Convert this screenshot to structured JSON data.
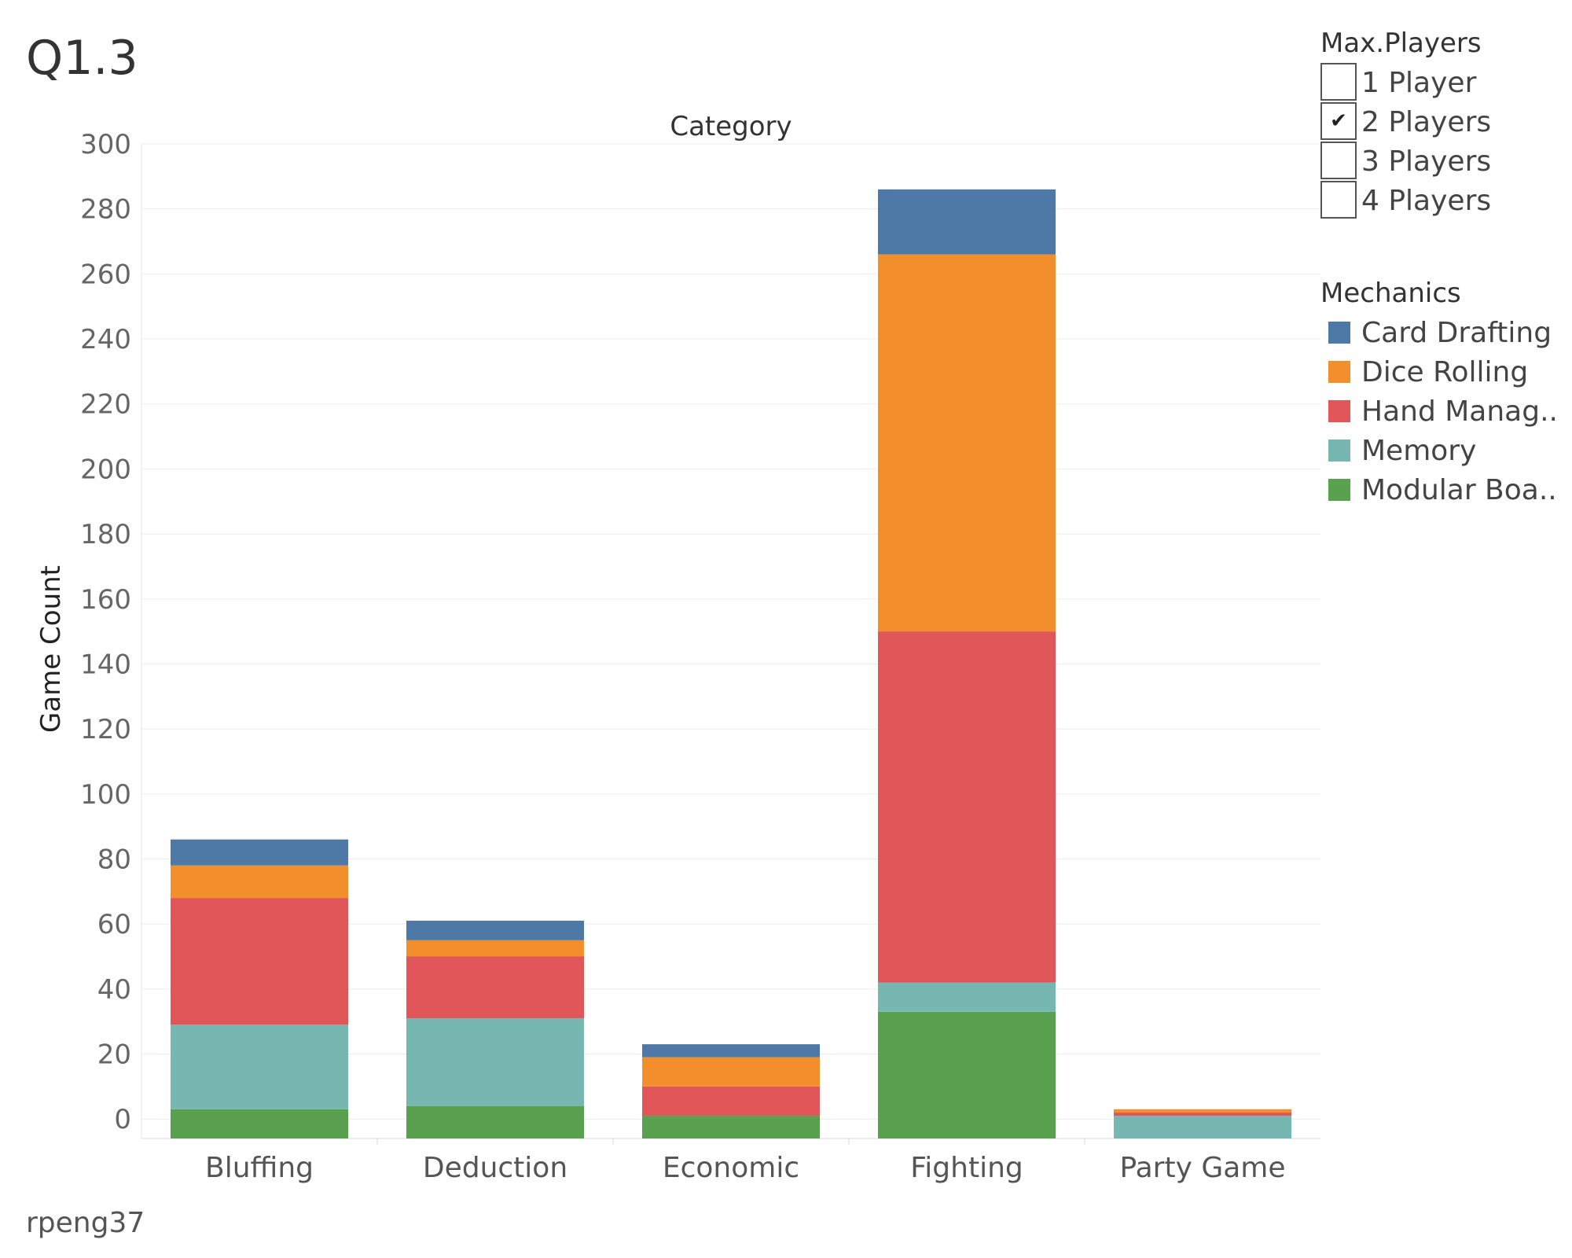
{
  "page": {
    "title": "Q1.3",
    "author": "rpeng37"
  },
  "filter": {
    "title": "Max.Players",
    "options": [
      {
        "label": "1 Player",
        "checked": false
      },
      {
        "label": "2 Players",
        "checked": true
      },
      {
        "label": "3 Players",
        "checked": false
      },
      {
        "label": "4 Players",
        "checked": false
      }
    ],
    "check_glyph": "✔"
  },
  "legend": {
    "title": "Mechanics",
    "items": [
      {
        "label": "Card Drafting",
        "color": "#4e79a7"
      },
      {
        "label": "Dice Rolling",
        "color": "#f28e2b"
      },
      {
        "label": "Hand Manag..",
        "color": "#e15759"
      },
      {
        "label": "Memory",
        "color": "#76b7b2"
      },
      {
        "label": "Modular Boa..",
        "color": "#59a14f"
      }
    ]
  },
  "chart_data": {
    "type": "bar",
    "stacked": true,
    "title": "Category",
    "xlabel": "",
    "ylabel": "Game Count",
    "ylim": [
      -6,
      300
    ],
    "yticks": [
      0,
      20,
      40,
      60,
      80,
      100,
      120,
      140,
      160,
      180,
      200,
      220,
      240,
      260,
      280,
      300
    ],
    "grid": true,
    "legend_position": "right",
    "categories": [
      "Bluffing",
      "Deduction",
      "Economic",
      "Fighting",
      "Party Game"
    ],
    "series": [
      {
        "name": "Modular Boa..",
        "color": "#59a14f",
        "values": [
          3,
          4,
          1,
          33,
          0
        ]
      },
      {
        "name": "Memory",
        "color": "#76b7b2",
        "values": [
          26,
          27,
          0,
          9,
          1
        ]
      },
      {
        "name": "Hand Manag..",
        "color": "#e15759",
        "values": [
          39,
          19,
          9,
          108,
          1
        ]
      },
      {
        "name": "Dice Rolling",
        "color": "#f28e2b",
        "values": [
          10,
          5,
          9,
          116,
          1
        ]
      },
      {
        "name": "Card Drafting",
        "color": "#4e79a7",
        "values": [
          8,
          6,
          4,
          20,
          0
        ]
      }
    ]
  }
}
